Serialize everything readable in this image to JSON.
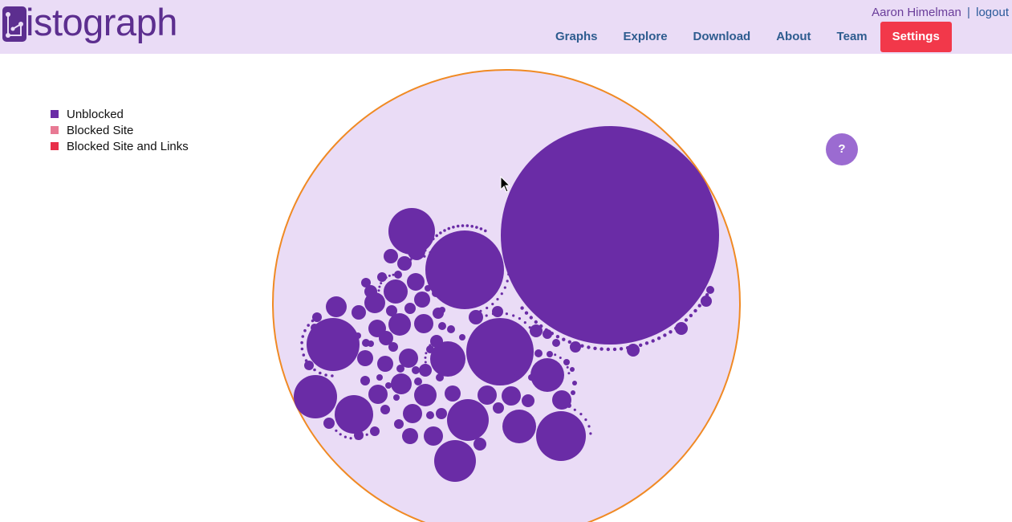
{
  "brand": {
    "logo_text": "istograph"
  },
  "user": {
    "name": "Aaron Himelman",
    "separator": "|",
    "logout_label": "logout"
  },
  "nav": {
    "items": [
      {
        "label": "Graphs"
      },
      {
        "label": "Explore"
      },
      {
        "label": "Download"
      },
      {
        "label": "About"
      },
      {
        "label": "Team"
      },
      {
        "label": "Settings",
        "active": true
      }
    ]
  },
  "legend": {
    "items": [
      {
        "label": "Unblocked",
        "color": "#6a2ca6"
      },
      {
        "label": "Blocked Site",
        "color": "#e87a94"
      },
      {
        "label": "Blocked Site and Links",
        "color": "#e8304a"
      }
    ]
  },
  "help": {
    "label": "?"
  },
  "colors": {
    "header_bg": "#eadcf6",
    "brand_purple": "#5c2e8f",
    "nav_text": "#2e5c8f",
    "settings_bg": "#f2384a",
    "bubble_fill": "#6a2ca6",
    "graph_bg": "#eadcf6",
    "graph_border": "#f08a24",
    "help_bg": "#9b6bd1"
  }
}
